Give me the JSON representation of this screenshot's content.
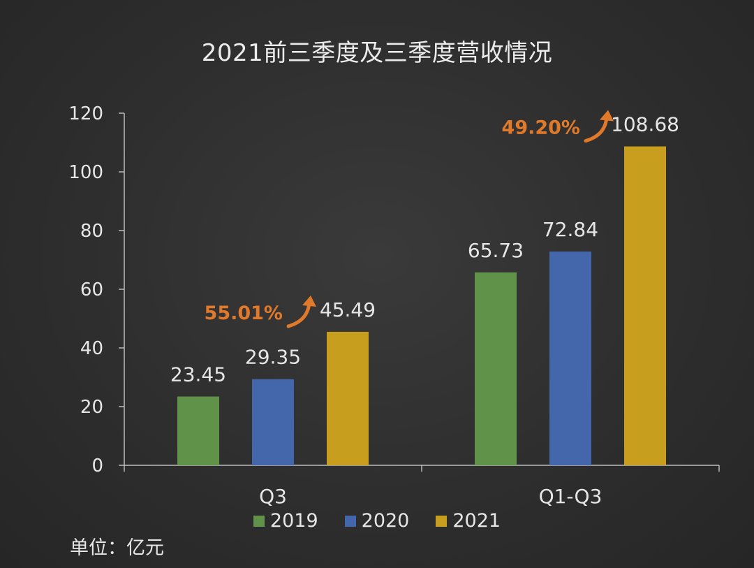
{
  "chart_data": {
    "type": "bar",
    "title": "2021前三季度及三季度营收情况",
    "unit": "单位：亿元",
    "categories": [
      "Q3",
      "Q1-Q3"
    ],
    "series": [
      {
        "name": "2019",
        "color": "#609349",
        "values": [
          23.45,
          65.73
        ],
        "labels": [
          "23.45",
          "65.73"
        ]
      },
      {
        "name": "2020",
        "color": "#4466aa",
        "values": [
          29.35,
          72.84
        ],
        "labels": [
          "29.35",
          "72.84"
        ]
      },
      {
        "name": "2021",
        "color": "#c89e1f",
        "values": [
          45.49,
          108.68
        ],
        "labels": [
          "45.49",
          "108.68"
        ]
      }
    ],
    "ylim": [
      0,
      120
    ],
    "yticks": [
      "0",
      "20",
      "40",
      "60",
      "80",
      "100",
      "120"
    ],
    "annotations": [
      {
        "text": "55.01%",
        "category": "Q3",
        "color": "#e07a2a"
      },
      {
        "text": "49.20%",
        "category": "Q1-Q3",
        "color": "#e07a2a"
      }
    ],
    "grid": false,
    "legend_position": "bottom"
  }
}
